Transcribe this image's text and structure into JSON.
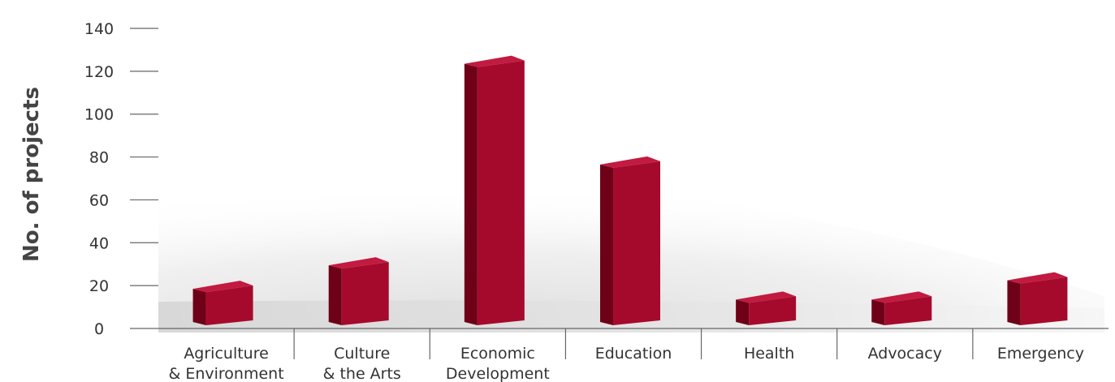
{
  "chart_data": {
    "type": "bar",
    "title": "",
    "xlabel": "",
    "ylabel": "No. of projects",
    "ylim": [
      0,
      140
    ],
    "yticks": [
      0,
      20,
      40,
      60,
      80,
      100,
      120,
      140
    ],
    "grid": false,
    "legend": "none",
    "categories": [
      {
        "lines": [
          "Agriculture",
          "& Environment"
        ]
      },
      {
        "lines": [
          "Culture",
          "& the Arts"
        ]
      },
      {
        "lines": [
          "Economic",
          "Development"
        ]
      },
      {
        "lines": [
          "Education"
        ]
      },
      {
        "lines": [
          "Health"
        ]
      },
      {
        "lines": [
          "Advocacy"
        ]
      },
      {
        "lines": [
          "Emergency"
        ]
      }
    ],
    "values": [
      20,
      31,
      125,
      78,
      15,
      15,
      24
    ],
    "colors": {
      "bar_front": "#a50a2c",
      "bar_side": "#6e0018",
      "bar_top": "#c21a40",
      "axis": "#666666",
      "text": "#333333"
    }
  }
}
